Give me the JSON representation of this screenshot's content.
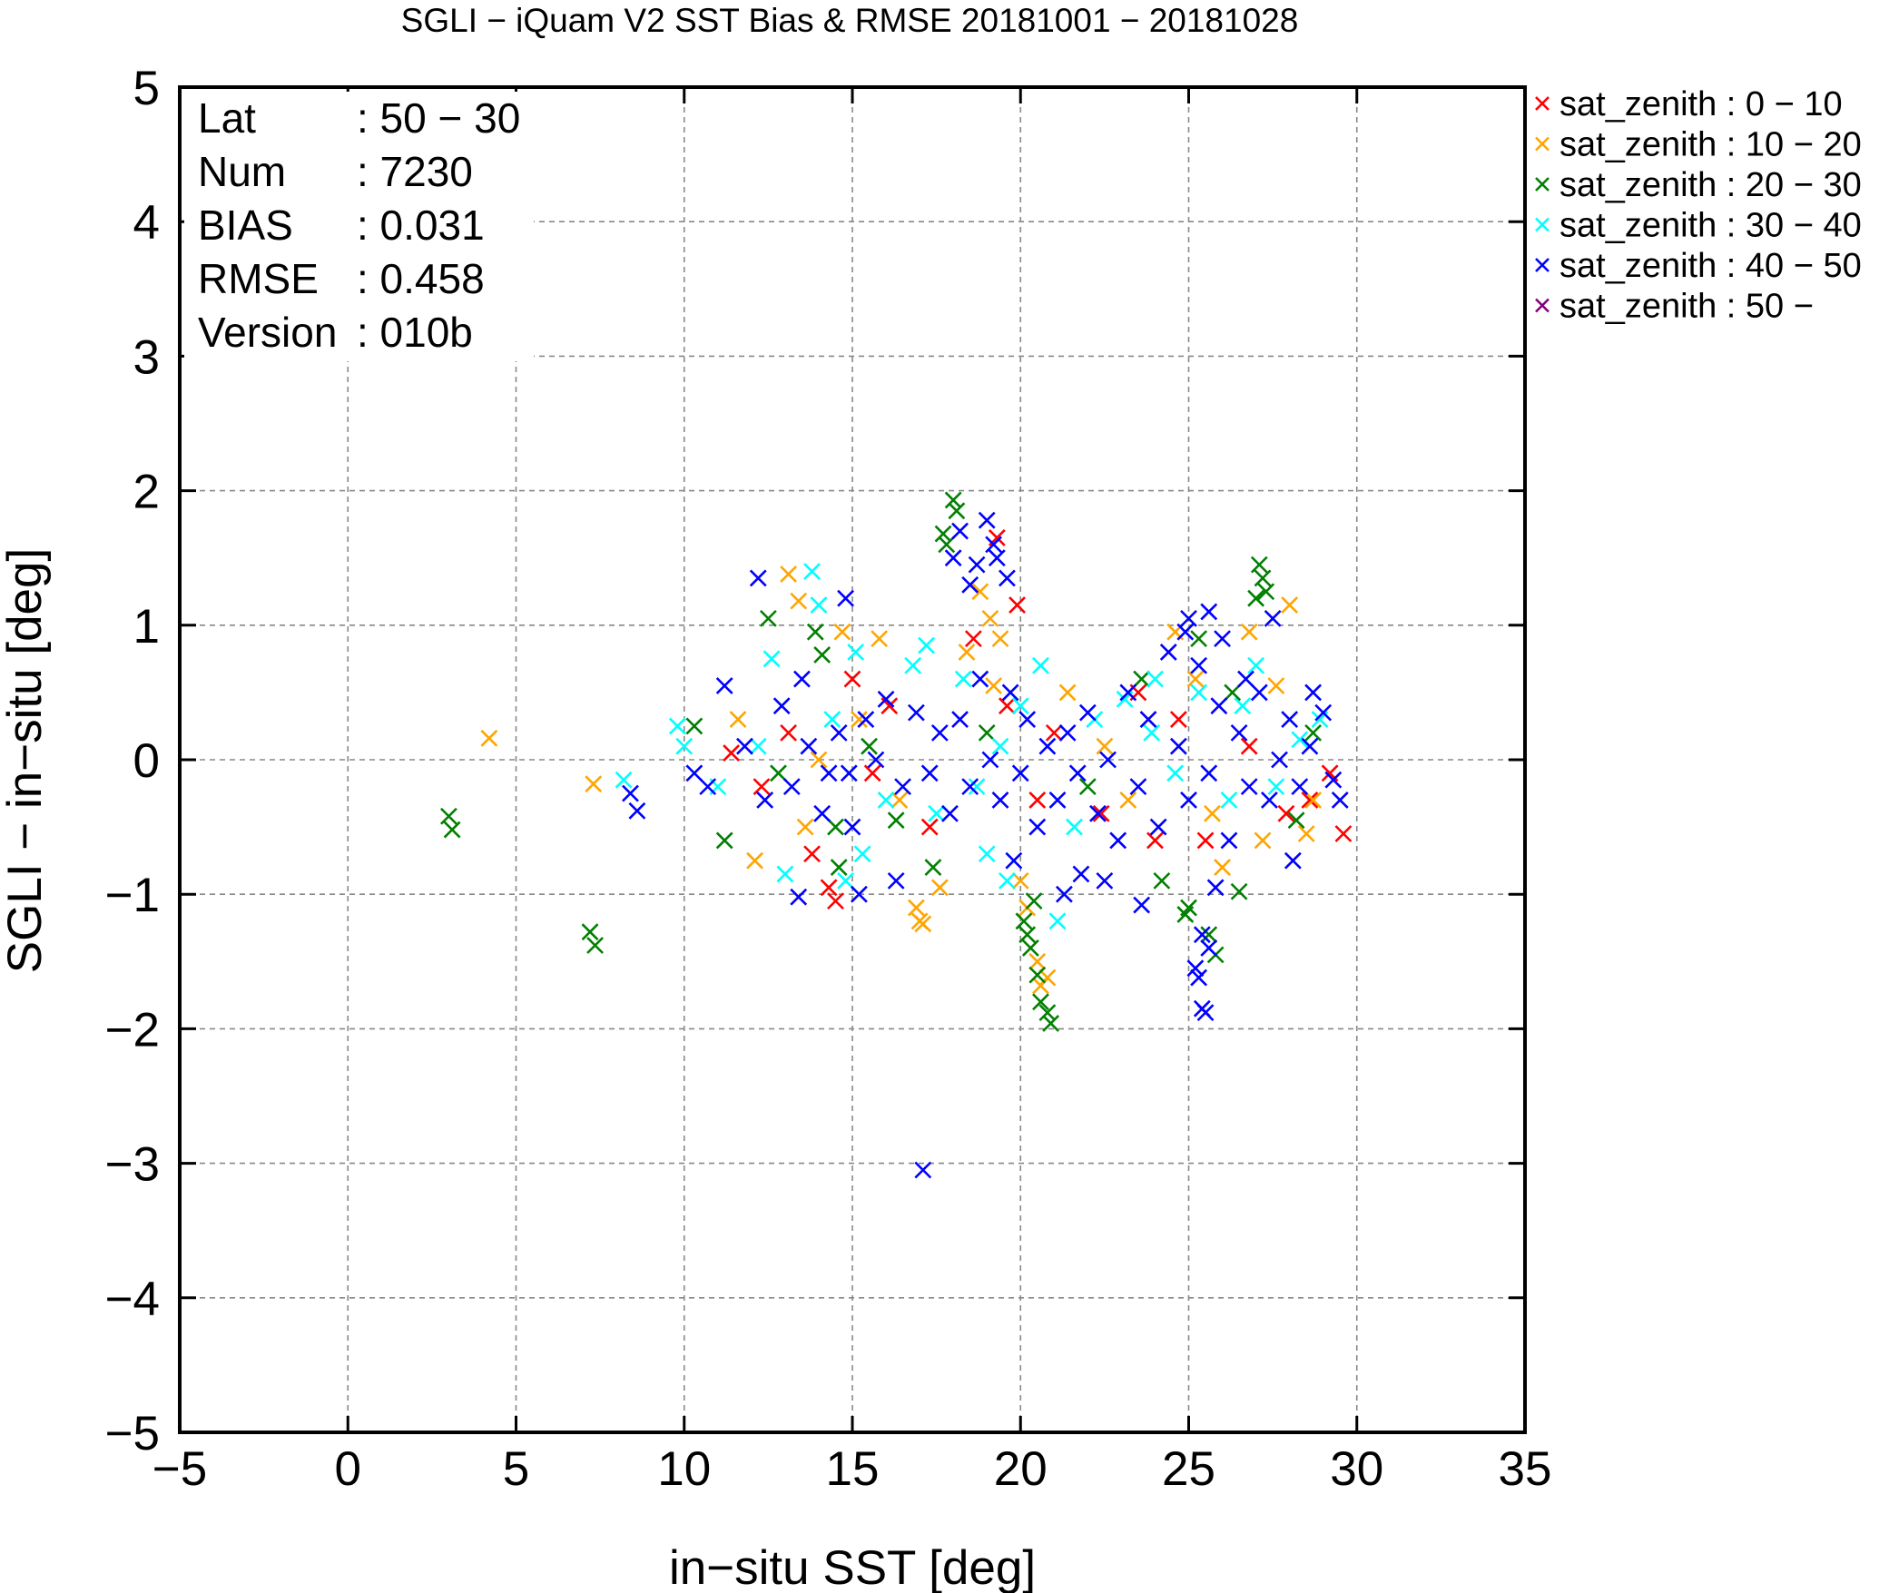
{
  "chart_data": {
    "type": "scatter",
    "title": "SGLI − iQuam V2 SST Bias & RMSE 20181001 − 20181028",
    "xlabel": "in−situ SST [deg]",
    "ylabel": "SGLI − in−situ [deg]",
    "xlim": [
      -5,
      35
    ],
    "ylim": [
      -5,
      5
    ],
    "xticks": [
      -5,
      0,
      5,
      10,
      15,
      20,
      25,
      30,
      35
    ],
    "yticks": [
      -5,
      -4,
      -3,
      -2,
      -1,
      0,
      1,
      2,
      3,
      4,
      5
    ],
    "xtick_labels": [
      "−5",
      "0",
      "5",
      "10",
      "15",
      "20",
      "25",
      "30",
      "35"
    ],
    "ytick_labels": [
      "−5",
      "−4",
      "−3",
      "−2",
      "−1",
      "0",
      "1",
      "2",
      "3",
      "4",
      "5"
    ],
    "grid": true,
    "legend_position": "outside-top-right",
    "stats": [
      {
        "key": "Lat",
        "value": ": 50 − 30"
      },
      {
        "key": "Num",
        "value": ": 7230"
      },
      {
        "key": "BIAS",
        "value": ": 0.031"
      },
      {
        "key": "RMSE",
        "value": ": 0.458"
      },
      {
        "key": "Version",
        "value": ": 010b"
      }
    ],
    "series": [
      {
        "name": "sat_zenith :  0 − 10",
        "color": "#ff0000",
        "marker": "x",
        "points": [
          [
            12.3,
            -0.2
          ],
          [
            13.8,
            -0.7
          ],
          [
            14.3,
            -0.95
          ],
          [
            14.5,
            -1.05
          ],
          [
            15.0,
            0.6
          ],
          [
            16.1,
            0.4
          ],
          [
            17.3,
            -0.5
          ],
          [
            18.6,
            0.9
          ],
          [
            19.3,
            1.65
          ],
          [
            19.9,
            1.15
          ],
          [
            20.5,
            -0.3
          ],
          [
            21.0,
            0.2
          ],
          [
            22.4,
            -0.4
          ],
          [
            23.5,
            0.5
          ],
          [
            24.7,
            0.3
          ],
          [
            25.5,
            -0.6
          ],
          [
            26.8,
            0.1
          ],
          [
            27.9,
            -0.4
          ],
          [
            28.6,
            -0.3
          ],
          [
            29.2,
            -0.1
          ],
          [
            29.6,
            -0.55
          ],
          [
            13.1,
            0.2
          ],
          [
            15.6,
            -0.1
          ],
          [
            11.4,
            0.05
          ],
          [
            19.6,
            0.4
          ],
          [
            24.0,
            -0.6
          ]
        ]
      },
      {
        "name": "sat_zenith : 10 − 20",
        "color": "#ffa500",
        "marker": "x",
        "points": [
          [
            4.2,
            0.16
          ],
          [
            7.3,
            -0.18
          ],
          [
            12.1,
            -0.75
          ],
          [
            13.1,
            1.38
          ],
          [
            13.4,
            1.18
          ],
          [
            14.7,
            0.95
          ],
          [
            15.8,
            0.9
          ],
          [
            16.9,
            -1.1
          ],
          [
            17.0,
            -1.2
          ],
          [
            17.1,
            -1.22
          ],
          [
            17.6,
            -0.95
          ],
          [
            18.4,
            0.8
          ],
          [
            18.8,
            1.25
          ],
          [
            19.1,
            1.05
          ],
          [
            19.4,
            0.9
          ],
          [
            20.0,
            -0.9
          ],
          [
            20.2,
            -1.1
          ],
          [
            20.5,
            -1.5
          ],
          [
            20.6,
            -1.68
          ],
          [
            20.8,
            -1.62
          ],
          [
            21.4,
            0.5
          ],
          [
            23.2,
            -0.3
          ],
          [
            24.6,
            0.95
          ],
          [
            25.2,
            0.6
          ],
          [
            26.0,
            -0.8
          ],
          [
            26.8,
            0.95
          ],
          [
            27.6,
            0.55
          ],
          [
            28.0,
            1.15
          ],
          [
            28.5,
            -0.55
          ],
          [
            28.7,
            -0.3
          ],
          [
            13.6,
            -0.5
          ],
          [
            15.2,
            0.3
          ],
          [
            16.4,
            -0.3
          ],
          [
            22.5,
            0.1
          ],
          [
            25.7,
            -0.4
          ],
          [
            27.2,
            -0.6
          ],
          [
            11.6,
            0.3
          ],
          [
            14.0,
            0.0
          ],
          [
            19.2,
            0.55
          ],
          [
            23.8,
            0.3
          ]
        ]
      },
      {
        "name": "sat_zenith : 20 − 30",
        "color": "#008000",
        "marker": "x",
        "points": [
          [
            3.0,
            -0.42
          ],
          [
            3.1,
            -0.52
          ],
          [
            7.2,
            -1.28
          ],
          [
            7.35,
            -1.38
          ],
          [
            10.3,
            0.25
          ],
          [
            11.2,
            -0.6
          ],
          [
            12.5,
            1.05
          ],
          [
            13.9,
            0.95
          ],
          [
            14.1,
            0.78
          ],
          [
            14.5,
            -0.5
          ],
          [
            14.6,
            -0.8
          ],
          [
            16.3,
            -0.45
          ],
          [
            17.7,
            1.68
          ],
          [
            17.8,
            1.6
          ],
          [
            18.0,
            1.93
          ],
          [
            18.1,
            1.85
          ],
          [
            20.2,
            -1.3
          ],
          [
            20.3,
            -1.4
          ],
          [
            20.5,
            -1.6
          ],
          [
            20.6,
            -1.8
          ],
          [
            20.8,
            -1.88
          ],
          [
            20.9,
            -1.96
          ],
          [
            20.4,
            -1.05
          ],
          [
            20.1,
            -1.2
          ],
          [
            24.9,
            -1.15
          ],
          [
            25.0,
            -1.1
          ],
          [
            25.6,
            -1.3
          ],
          [
            25.8,
            -1.45
          ],
          [
            26.5,
            -0.98
          ],
          [
            27.0,
            1.2
          ],
          [
            27.1,
            1.45
          ],
          [
            27.3,
            1.25
          ],
          [
            27.2,
            1.35
          ],
          [
            28.2,
            -0.45
          ],
          [
            12.8,
            -0.1
          ],
          [
            15.5,
            0.1
          ],
          [
            19.0,
            0.2
          ],
          [
            22.0,
            -0.2
          ],
          [
            23.6,
            0.6
          ],
          [
            25.3,
            0.9
          ],
          [
            26.3,
            0.5
          ],
          [
            28.7,
            0.2
          ],
          [
            17.4,
            -0.8
          ],
          [
            24.2,
            -0.9
          ]
        ]
      },
      {
        "name": "sat_zenith : 30 − 40",
        "color": "#00ffff",
        "marker": "x",
        "points": [
          [
            8.2,
            -0.15
          ],
          [
            9.8,
            0.25
          ],
          [
            10.0,
            0.1
          ],
          [
            12.6,
            0.75
          ],
          [
            13.0,
            -0.85
          ],
          [
            13.8,
            1.4
          ],
          [
            14.0,
            1.15
          ],
          [
            14.8,
            -0.9
          ],
          [
            15.1,
            0.8
          ],
          [
            15.3,
            -0.7
          ],
          [
            16.8,
            0.7
          ],
          [
            17.2,
            0.85
          ],
          [
            17.5,
            -0.4
          ],
          [
            18.3,
            0.6
          ],
          [
            19.0,
            -0.7
          ],
          [
            19.6,
            -0.9
          ],
          [
            20.0,
            0.4
          ],
          [
            20.6,
            0.7
          ],
          [
            21.1,
            -1.2
          ],
          [
            22.2,
            0.3
          ],
          [
            23.1,
            0.45
          ],
          [
            23.9,
            0.2
          ],
          [
            24.6,
            -0.1
          ],
          [
            25.3,
            0.5
          ],
          [
            26.2,
            -0.3
          ],
          [
            27.0,
            0.7
          ],
          [
            27.6,
            -0.2
          ],
          [
            28.3,
            0.15
          ],
          [
            28.9,
            0.3
          ],
          [
            11.0,
            -0.2
          ],
          [
            12.2,
            0.1
          ],
          [
            16.0,
            -0.3
          ],
          [
            18.7,
            -0.2
          ],
          [
            21.6,
            -0.5
          ],
          [
            24.0,
            0.6
          ],
          [
            26.6,
            0.4
          ],
          [
            14.4,
            0.3
          ],
          [
            19.4,
            0.1
          ]
        ]
      },
      {
        "name": "sat_zenith : 40 − 50",
        "color": "#0000ff",
        "marker": "x",
        "points": [
          [
            8.4,
            -0.25
          ],
          [
            8.6,
            -0.38
          ],
          [
            12.2,
            1.35
          ],
          [
            13.4,
            -1.02
          ],
          [
            14.3,
            -0.1
          ],
          [
            14.8,
            1.2
          ],
          [
            15.2,
            -1.0
          ],
          [
            16.3,
            -0.9
          ],
          [
            17.1,
            -3.05
          ],
          [
            18.0,
            1.5
          ],
          [
            18.2,
            1.7
          ],
          [
            18.5,
            1.3
          ],
          [
            18.7,
            1.45
          ],
          [
            19.0,
            1.78
          ],
          [
            19.2,
            1.6
          ],
          [
            19.3,
            1.5
          ],
          [
            19.6,
            1.35
          ],
          [
            21.3,
            -1.0
          ],
          [
            21.8,
            -0.85
          ],
          [
            23.6,
            -1.08
          ],
          [
            25.2,
            -1.55
          ],
          [
            25.3,
            -1.62
          ],
          [
            25.4,
            -1.85
          ],
          [
            25.5,
            -1.88
          ],
          [
            25.4,
            -1.3
          ],
          [
            25.6,
            -1.4
          ],
          [
            25.8,
            -0.95
          ],
          [
            25.0,
            1.05
          ],
          [
            25.6,
            1.1
          ],
          [
            26.7,
            0.6
          ],
          [
            27.5,
            1.05
          ],
          [
            28.1,
            -0.75
          ],
          [
            28.7,
            0.5
          ],
          [
            29.0,
            0.35
          ],
          [
            29.3,
            -0.15
          ],
          [
            29.5,
            -0.3
          ],
          [
            10.3,
            -0.1
          ],
          [
            10.7,
            -0.2
          ],
          [
            11.2,
            0.55
          ],
          [
            11.8,
            0.1
          ],
          [
            12.4,
            -0.3
          ],
          [
            12.9,
            0.4
          ],
          [
            13.2,
            -0.2
          ],
          [
            13.5,
            0.6
          ],
          [
            13.7,
            0.1
          ],
          [
            14.1,
            -0.4
          ],
          [
            14.6,
            0.2
          ],
          [
            15.0,
            -0.5
          ],
          [
            15.4,
            0.3
          ],
          [
            15.7,
            0.0
          ],
          [
            16.0,
            0.45
          ],
          [
            16.5,
            -0.2
          ],
          [
            16.9,
            0.35
          ],
          [
            17.3,
            -0.1
          ],
          [
            17.6,
            0.2
          ],
          [
            17.9,
            -0.4
          ],
          [
            18.2,
            0.3
          ],
          [
            18.5,
            -0.2
          ],
          [
            18.8,
            0.6
          ],
          [
            19.1,
            0.0
          ],
          [
            19.4,
            -0.3
          ],
          [
            19.7,
            0.5
          ],
          [
            20.0,
            -0.1
          ],
          [
            20.2,
            0.3
          ],
          [
            20.5,
            -0.5
          ],
          [
            20.8,
            0.1
          ],
          [
            21.1,
            -0.3
          ],
          [
            21.4,
            0.2
          ],
          [
            21.7,
            -0.1
          ],
          [
            22.0,
            0.35
          ],
          [
            22.3,
            -0.4
          ],
          [
            22.6,
            0.0
          ],
          [
            22.9,
            -0.6
          ],
          [
            23.2,
            0.5
          ],
          [
            23.5,
            -0.2
          ],
          [
            23.8,
            0.3
          ],
          [
            24.1,
            -0.5
          ],
          [
            24.4,
            0.8
          ],
          [
            24.7,
            0.1
          ],
          [
            25.0,
            -0.3
          ],
          [
            25.3,
            0.7
          ],
          [
            25.6,
            -0.1
          ],
          [
            25.9,
            0.4
          ],
          [
            26.2,
            -0.6
          ],
          [
            26.5,
            0.2
          ],
          [
            26.8,
            -0.2
          ],
          [
            27.1,
            0.5
          ],
          [
            27.4,
            -0.3
          ],
          [
            27.7,
            0.0
          ],
          [
            28.0,
            0.3
          ],
          [
            28.3,
            -0.2
          ],
          [
            28.6,
            0.1
          ],
          [
            14.9,
            -0.1
          ],
          [
            19.8,
            -0.75
          ],
          [
            22.5,
            -0.9
          ],
          [
            24.9,
            0.95
          ],
          [
            26.0,
            0.9
          ]
        ]
      },
      {
        "name": "sat_zenith : 50 −",
        "color": "#800080",
        "marker": "x",
        "points": []
      }
    ]
  }
}
